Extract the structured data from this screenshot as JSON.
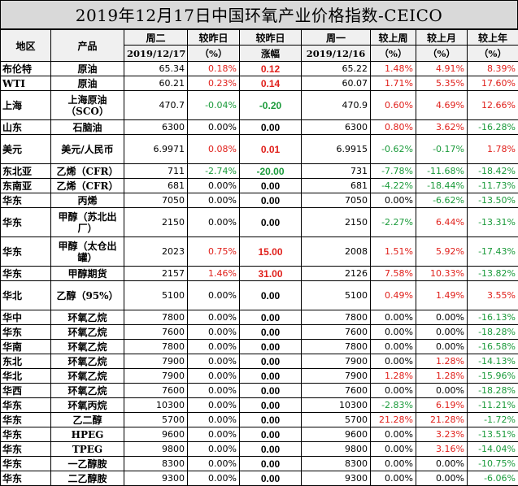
{
  "title": "2019年12月17日中国环氧产业价格指数-CEICO",
  "headers": {
    "region": "地区",
    "product": "产品",
    "tue": "周二",
    "tue_date": "2019/12/17",
    "vs_yesterday": "较昨日",
    "vs_yesterday_unit": "（%）",
    "vs_yesterday2": "较昨日",
    "change": "涨幅",
    "mon": "周一",
    "mon_date": "2019/12/16",
    "vs_last_week": "较上周",
    "vs_last_week_unit": "（%）",
    "vs_last_month": "较上月",
    "vs_last_month_unit": "（%）",
    "vs_last_year": "较上年",
    "vs_last_year_unit": "（%）"
  },
  "rows": [
    {
      "region": "布伦特",
      "product": "原油",
      "tue": "65.34",
      "pct": "0.18%",
      "chg": "0.12",
      "mon": "65.22",
      "wk": "1.48%",
      "mo": "4.91%",
      "yr": "8.39%",
      "tall": false
    },
    {
      "region": "WTI",
      "product": "原油",
      "tue": "60.21",
      "pct": "0.23%",
      "chg": "0.14",
      "mon": "60.07",
      "wk": "1.71%",
      "mo": "5.35%",
      "yr": "17.60%",
      "tall": false
    },
    {
      "region": "上海",
      "product": "上海原油（SCO）",
      "tue": "470.7",
      "pct": "-0.04%",
      "chg": "-0.20",
      "mon": "470.9",
      "wk": "0.60%",
      "mo": "4.69%",
      "yr": "12.66%",
      "tall": true
    },
    {
      "region": "山东",
      "product": "石脑油",
      "tue": "6300",
      "pct": "0.00%",
      "chg": "0.00",
      "mon": "6300",
      "wk": "0.80%",
      "mo": "3.62%",
      "yr": "-16.28%",
      "tall": false
    },
    {
      "region": "美元",
      "product": "美元/人民币",
      "tue": "6.9971",
      "pct": "0.08%",
      "chg": "0.01",
      "mon": "6.9915",
      "wk": "-0.62%",
      "mo": "-0.17%",
      "yr": "1.78%",
      "tall": true
    },
    {
      "region": "东北亚",
      "product": "乙烯（CFR）",
      "tue": "711",
      "pct": "-2.74%",
      "chg": "-20.00",
      "mon": "731",
      "wk": "-7.78%",
      "mo": "-11.68%",
      "yr": "-18.42%",
      "tall": false
    },
    {
      "region": "东南亚",
      "product": "乙烯（CFR）",
      "tue": "681",
      "pct": "0.00%",
      "chg": "0.00",
      "mon": "681",
      "wk": "-4.22%",
      "mo": "-18.44%",
      "yr": "-11.73%",
      "tall": false
    },
    {
      "region": "华东",
      "product": "丙烯",
      "tue": "7050",
      "pct": "0.00%",
      "chg": "0.00",
      "mon": "7050",
      "wk": "0.00%",
      "mo": "-6.62%",
      "yr": "-13.50%",
      "tall": false
    },
    {
      "region": "华东",
      "product": "甲醇（苏北出厂）",
      "tue": "2150",
      "pct": "0.00%",
      "chg": "0.00",
      "mon": "2150",
      "wk": "-2.27%",
      "mo": "6.44%",
      "yr": "-13.31%",
      "tall": true
    },
    {
      "region": "华东",
      "product": "甲醇（太仓出罐）",
      "tue": "2023",
      "pct": "0.75%",
      "chg": "15.00",
      "mon": "2008",
      "wk": "1.51%",
      "mo": "5.92%",
      "yr": "-17.43%",
      "tall": true
    },
    {
      "region": "华东",
      "product": "甲醇期货",
      "tue": "2157",
      "pct": "1.46%",
      "chg": "31.00",
      "mon": "2126",
      "wk": "7.58%",
      "mo": "10.33%",
      "yr": "-13.82%",
      "tall": false
    },
    {
      "region": "华北",
      "product": "乙醇（95%）",
      "tue": "5100",
      "pct": "0.00%",
      "chg": "0.00",
      "mon": "5100",
      "wk": "0.49%",
      "mo": "1.49%",
      "yr": "3.55%",
      "tall": true
    },
    {
      "region": "华中",
      "product": "环氧乙烷",
      "tue": "7800",
      "pct": "0.00%",
      "chg": "0.00",
      "mon": "7800",
      "wk": "0.00%",
      "mo": "0.00%",
      "yr": "-16.13%",
      "tall": false
    },
    {
      "region": "华东",
      "product": "环氧乙烷",
      "tue": "7600",
      "pct": "0.00%",
      "chg": "0.00",
      "mon": "7600",
      "wk": "0.00%",
      "mo": "0.00%",
      "yr": "-18.28%",
      "tall": false
    },
    {
      "region": "华南",
      "product": "环氧乙烷",
      "tue": "7800",
      "pct": "0.00%",
      "chg": "0.00",
      "mon": "7800",
      "wk": "0.00%",
      "mo": "0.00%",
      "yr": "-16.58%",
      "tall": false
    },
    {
      "region": "东北",
      "product": "环氧乙烷",
      "tue": "7900",
      "pct": "0.00%",
      "chg": "0.00",
      "mon": "7900",
      "wk": "0.00%",
      "mo": "1.28%",
      "yr": "-14.13%",
      "tall": false
    },
    {
      "region": "华北",
      "product": "环氧乙烷",
      "tue": "7900",
      "pct": "0.00%",
      "chg": "0.00",
      "mon": "7900",
      "wk": "1.28%",
      "mo": "1.28%",
      "yr": "-15.96%",
      "tall": false
    },
    {
      "region": "华西",
      "product": "环氧乙烷",
      "tue": "7600",
      "pct": "0.00%",
      "chg": "0.00",
      "mon": "7600",
      "wk": "0.00%",
      "mo": "0.00%",
      "yr": "-18.28%",
      "tall": false
    },
    {
      "region": "华东",
      "product": "环氧丙烷",
      "tue": "10300",
      "pct": "0.00%",
      "chg": "0.00",
      "mon": "10300",
      "wk": "-2.83%",
      "mo": "6.19%",
      "yr": "-11.21%",
      "tall": false
    },
    {
      "region": "华东",
      "product": "乙二醇",
      "tue": "5700",
      "pct": "0.00%",
      "chg": "0.00",
      "mon": "5700",
      "wk": "21.28%",
      "mo": "21.28%",
      "yr": "-1.72%",
      "tall": false
    },
    {
      "region": "华东",
      "product": "HPEG",
      "tue": "9600",
      "pct": "0.00%",
      "chg": "0.00",
      "mon": "9600",
      "wk": "0.00%",
      "mo": "3.23%",
      "yr": "-13.51%",
      "tall": false
    },
    {
      "region": "华东",
      "product": "TPEG",
      "tue": "9800",
      "pct": "0.00%",
      "chg": "0.00",
      "mon": "9800",
      "wk": "0.00%",
      "mo": "3.16%",
      "yr": "-14.04%",
      "tall": false
    },
    {
      "region": "华东",
      "product": "一乙醇胺",
      "tue": "8300",
      "pct": "0.00%",
      "chg": "0.00",
      "mon": "8300",
      "wk": "0.00%",
      "mo": "0.00%",
      "yr": "-10.75%",
      "tall": false
    },
    {
      "region": "华东",
      "product": "二乙醇胺",
      "tue": "9300",
      "pct": "0.00%",
      "chg": "0.00",
      "mon": "9300",
      "wk": "0.00%",
      "mo": "0.00%",
      "yr": "-6.06%",
      "tall": false
    }
  ]
}
